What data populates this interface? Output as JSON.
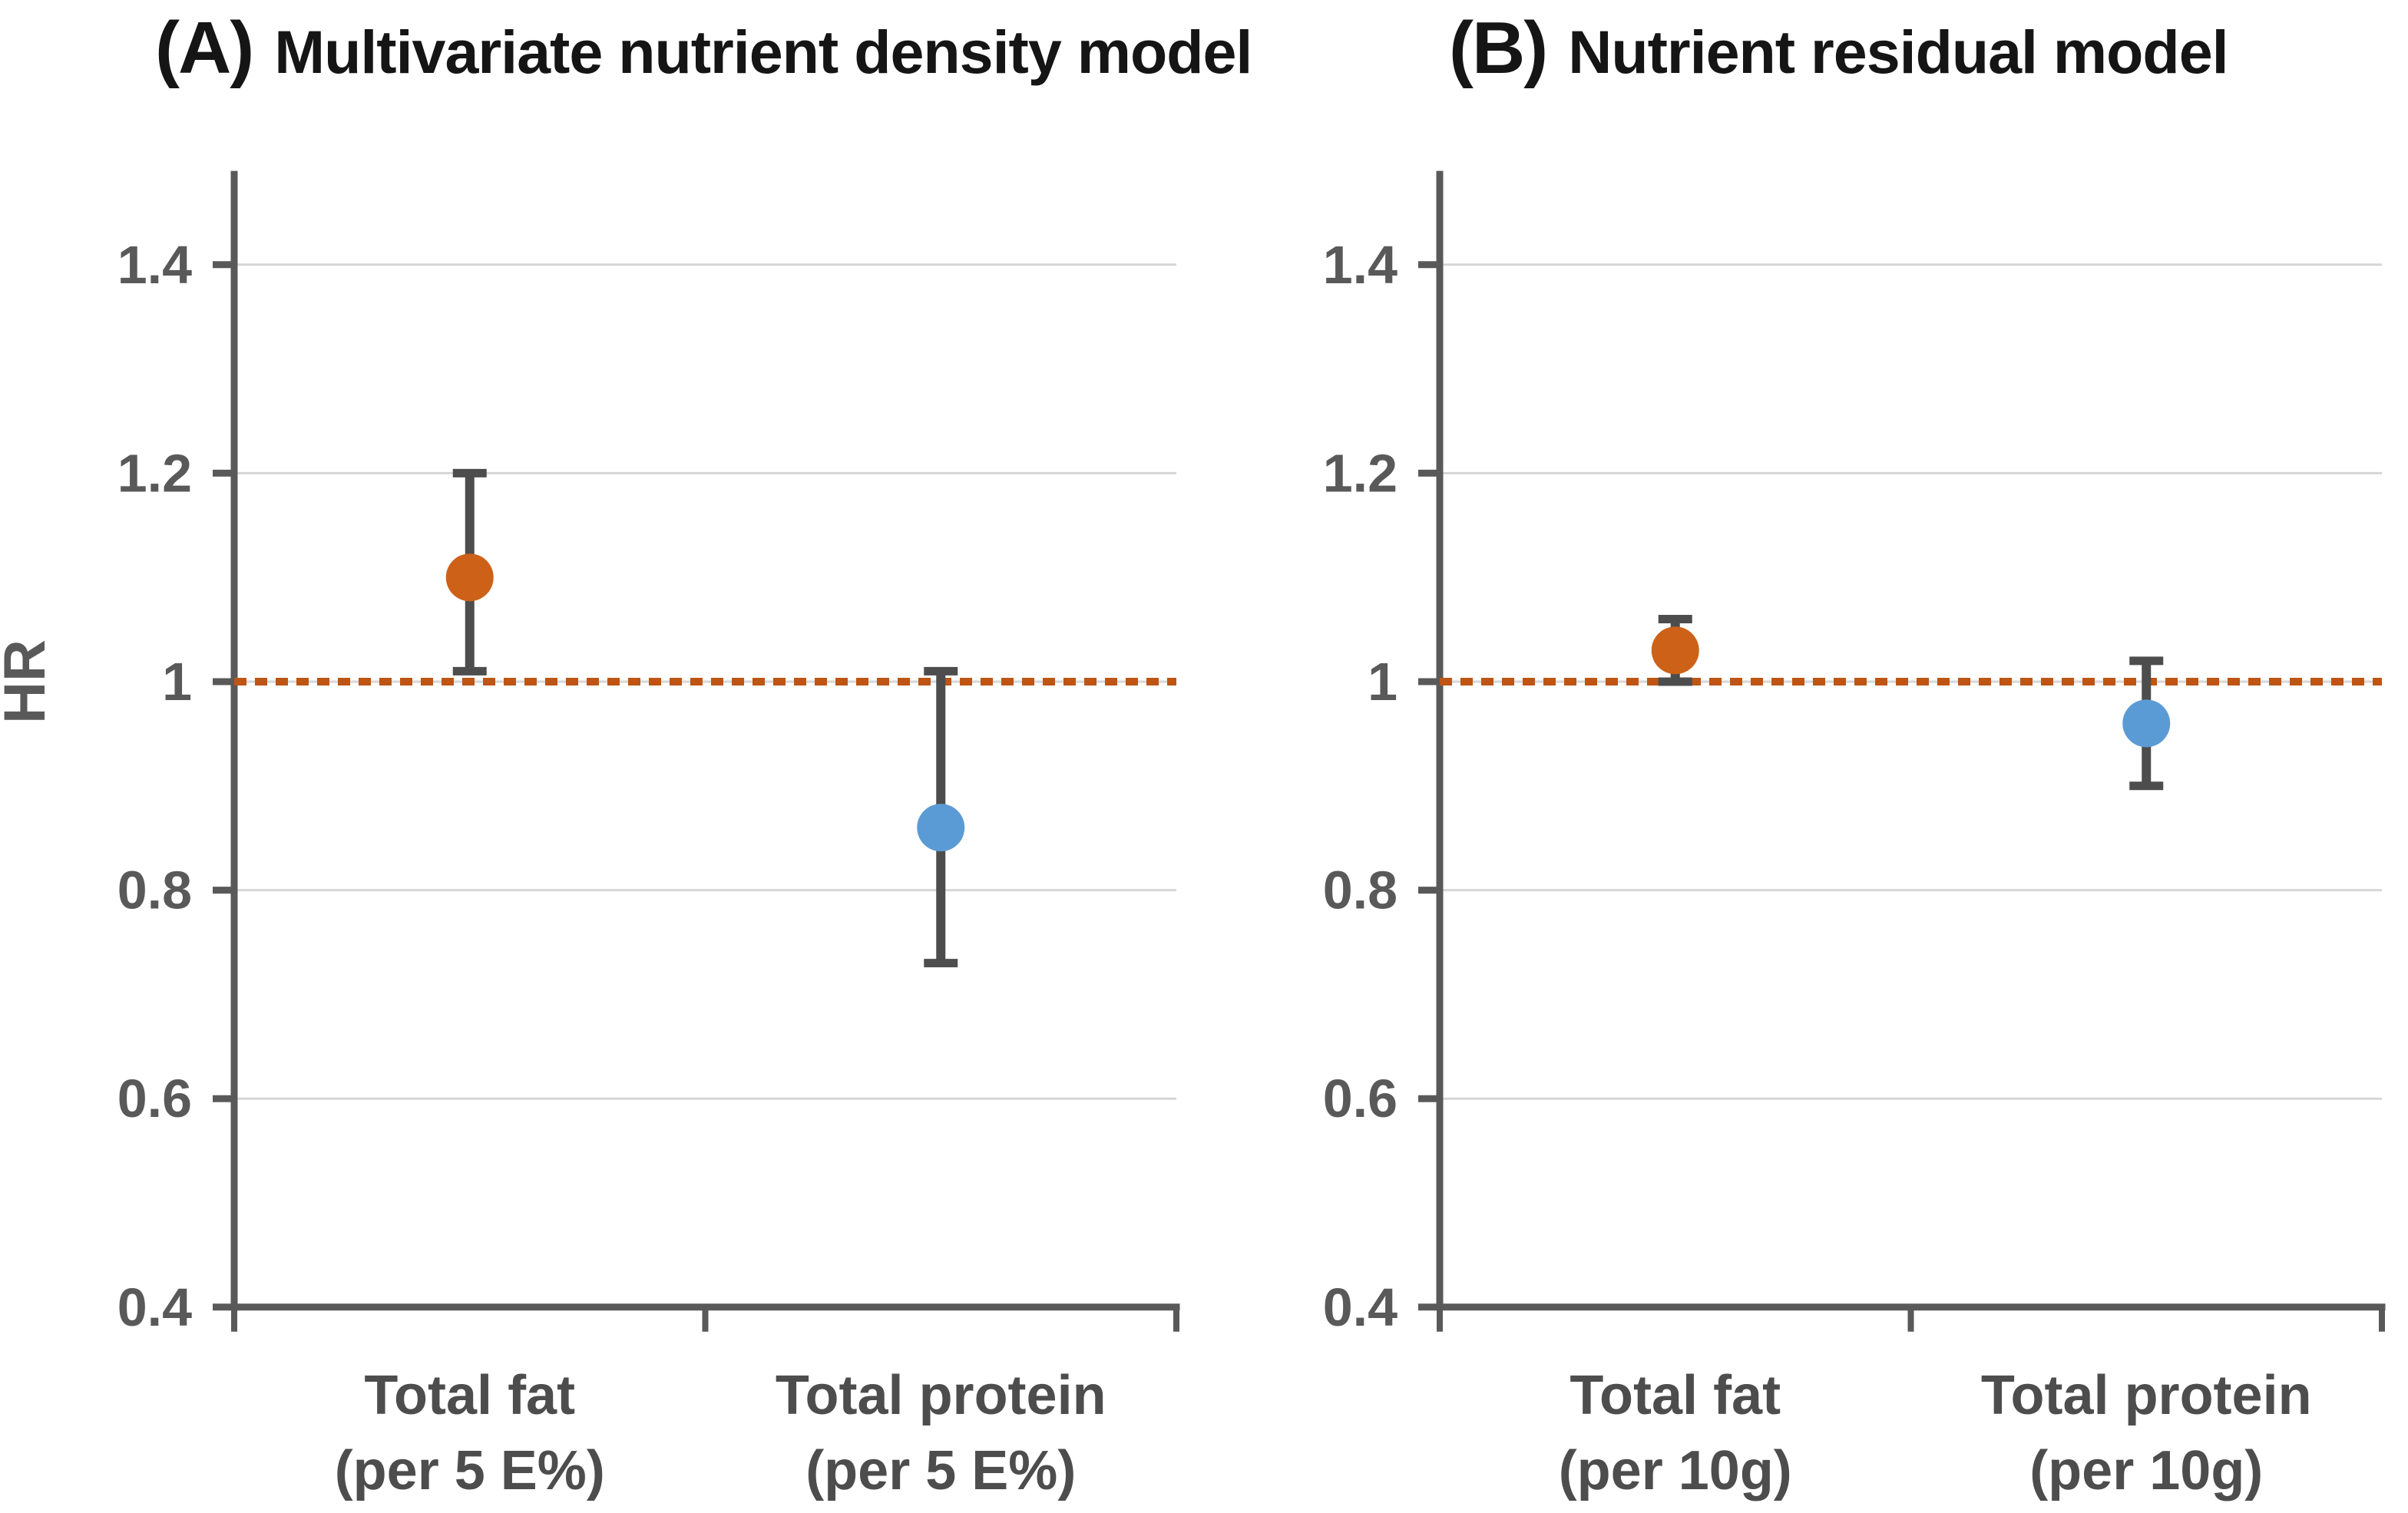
{
  "figure_type": "forest-plot, two panels, hazard ratios with 95% CI",
  "panels": [
    {
      "tag": "(A)",
      "title": "Multivariate nutrient density model"
    },
    {
      "tag": "(B)",
      "title": "Nutrient residual model"
    }
  ],
  "y_axis": {
    "title": "HR",
    "tick_labels": [
      "1.4",
      "1.2",
      "1",
      "0.8",
      "0.6",
      "0.4"
    ],
    "tick_values": [
      1.4,
      1.2,
      1,
      0.8,
      0.6,
      0.4
    ],
    "range_min": 0.4,
    "range_max": 1.49
  },
  "reference_line": {
    "value": 1,
    "style": "dotted"
  },
  "colors": {
    "fat_marker": "#CD6118",
    "protein_marker": "#5B9BD5",
    "error_bar": "#4D4D4D",
    "axis": "#595959",
    "gridline": "#D6D6D6",
    "tick_label": "#595959",
    "category_label": "#4D4D4D",
    "reference_line": "#BE5514",
    "title": "#151515",
    "background": "#FFFFFF"
  },
  "chart_data": [
    {
      "type": "scatter",
      "panel_label": "(A)",
      "title": "Multivariate nutrient density model",
      "ylabel": "HR",
      "ylim": [
        0.4,
        1.49
      ],
      "yticks": [
        0.4,
        0.6,
        0.8,
        1,
        1.2,
        1.4
      ],
      "grid": true,
      "reference_line_y": 1,
      "categories": [
        [
          "Total fat",
          "(per 5 E%)"
        ],
        [
          "Total protein",
          "(per 5 E%)"
        ]
      ],
      "series": [
        {
          "name": "Total fat (per 5 E%)",
          "hr": 1.1,
          "ci_lower": 1.01,
          "ci_upper": 1.2,
          "marker_color_key": "fat_marker"
        },
        {
          "name": "Total protein (per 5 E%)",
          "hr": 0.86,
          "ci_lower": 0.73,
          "ci_upper": 1.01,
          "marker_color_key": "protein_marker"
        }
      ]
    },
    {
      "type": "scatter",
      "panel_label": "(B)",
      "title": "Nutrient residual model",
      "ylabel": "HR",
      "ylim": [
        0.4,
        1.49
      ],
      "yticks": [
        0.4,
        0.6,
        0.8,
        1,
        1.2,
        1.4
      ],
      "grid": true,
      "reference_line_y": 1,
      "categories": [
        [
          "Total fat",
          "(per 10g)"
        ],
        [
          "Total protein",
          "(per 10g)"
        ]
      ],
      "series": [
        {
          "name": "Total fat (per 10g)",
          "hr": 1.03,
          "ci_lower": 1.0,
          "ci_upper": 1.06,
          "marker_color_key": "fat_marker"
        },
        {
          "name": "Total protein (per 10g)",
          "hr": 0.96,
          "ci_lower": 0.9,
          "ci_upper": 1.02,
          "marker_color_key": "protein_marker"
        }
      ]
    }
  ]
}
